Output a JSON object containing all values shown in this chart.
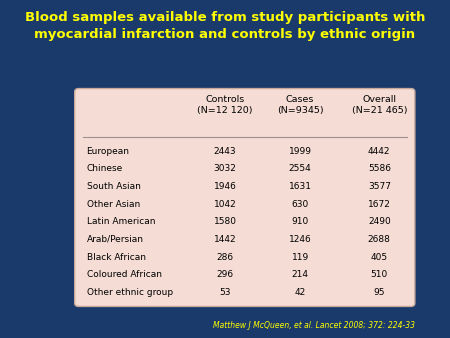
{
  "title_line1": "Blood samples available from study participants with",
  "title_line2": "myocardial infarction and controls by ethnic origin",
  "title_color": "#FFFF00",
  "background_color": "#1a3a6b",
  "table_bg_color": "#f5ddd5",
  "citation": "Matthew J McQueen, et al. Lancet 2008; 372: 224-33",
  "citation_color": "#FFFF00",
  "col_headers": [
    "Controls\n(N=12 120)",
    "Cases\n(N=9345)",
    "Overall\n(N=21 465)"
  ],
  "row_labels": [
    "European",
    "Chinese",
    "South Asian",
    "Other Asian",
    "Latin American",
    "Arab/Persian",
    "Black African",
    "Coloured African",
    "Other ethnic group"
  ],
  "data": [
    [
      "2443",
      "1999",
      "4442"
    ],
    [
      "3032",
      "2554",
      "5586"
    ],
    [
      "1946",
      "1631",
      "3577"
    ],
    [
      "1042",
      "630",
      "1672"
    ],
    [
      "1580",
      "910",
      "2490"
    ],
    [
      "1442",
      "1246",
      "2688"
    ],
    [
      "286",
      "119",
      "405"
    ],
    [
      "296",
      "214",
      "510"
    ],
    [
      "53",
      "42",
      "95"
    ]
  ]
}
